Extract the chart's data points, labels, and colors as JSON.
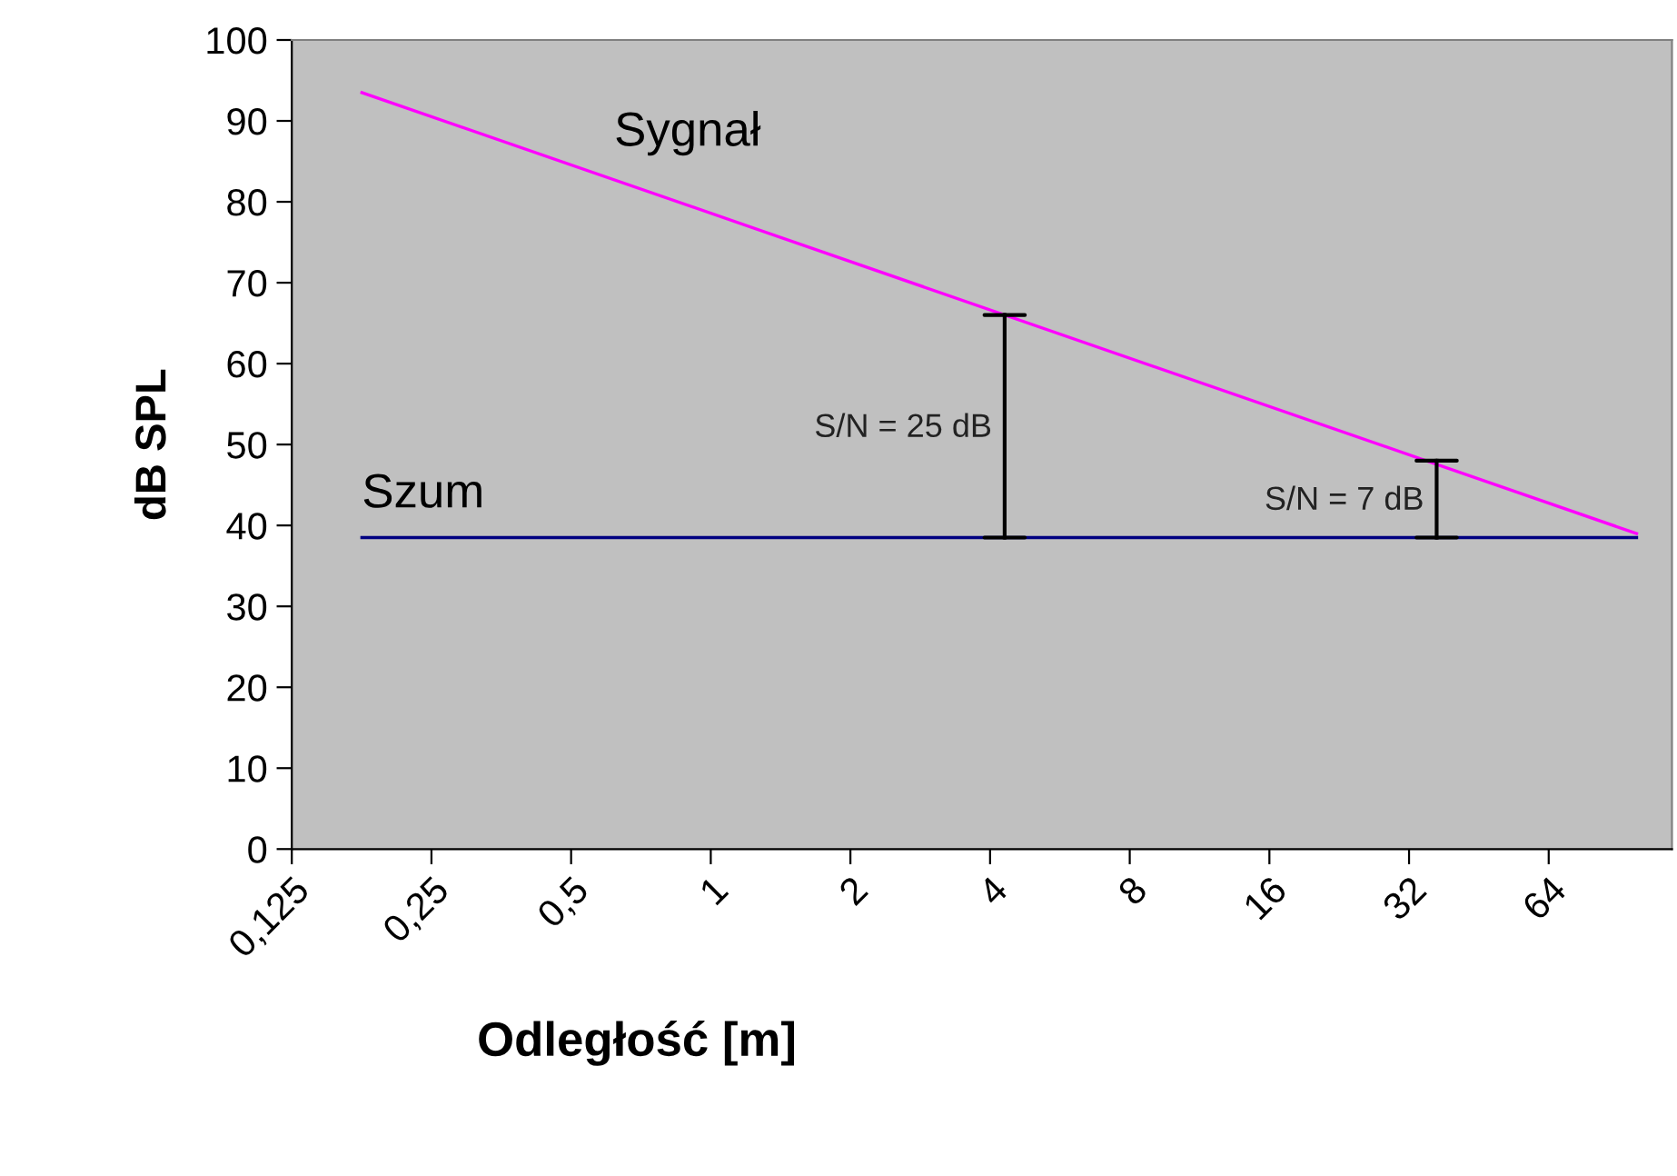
{
  "chart_data": {
    "type": "line",
    "xlabel": "Odległość [m]",
    "ylabel": "dB SPL",
    "log": "x",
    "xlim": [
      0.125,
      118
    ],
    "ylim": [
      0,
      100
    ],
    "xticks": [
      {
        "value": 0.125,
        "label": "0,125"
      },
      {
        "value": 0.25,
        "label": "0,25"
      },
      {
        "value": 0.5,
        "label": "0,5"
      },
      1,
      2,
      4,
      8,
      16,
      32,
      64
    ],
    "yticks": [
      0,
      10,
      20,
      30,
      40,
      50,
      60,
      70,
      80,
      90,
      100
    ],
    "grid": false,
    "legend": false,
    "marker": "none",
    "series": [
      {
        "name": "Sygnał",
        "color": "#ff00ff",
        "x": [
          0.177,
          99
        ],
        "values": [
          93.5,
          39
        ]
      },
      {
        "name": "Szum",
        "color": "#000080",
        "x": [
          0.177,
          99
        ],
        "values": [
          38.5,
          38.5
        ]
      },
      {
        "color": "#000000",
        "x": [
          4.3,
          4.3
        ],
        "values": [
          38.5,
          66
        ]
      },
      {
        "color": "#000000",
        "x": [
          36.7,
          36.7
        ],
        "values": [
          38.5,
          48
        ]
      }
    ],
    "annotations": [
      {
        "text": "S/N = 25 dB",
        "x": 4.3,
        "y": 52
      },
      {
        "text": "S/N = 7 dB",
        "x": 36.7,
        "y": 43
      }
    ]
  }
}
